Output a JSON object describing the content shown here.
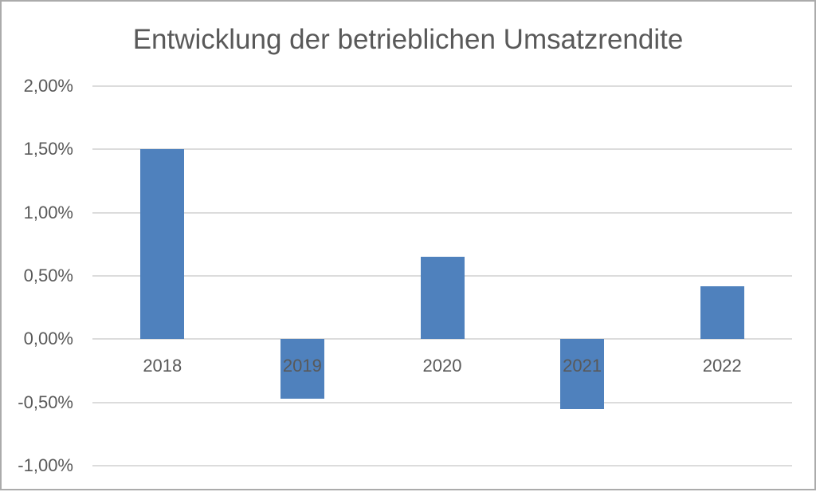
{
  "chart_data": {
    "type": "bar",
    "title": "Entwicklung der betrieblichen Umsatzrendite",
    "categories": [
      "2018",
      "2019",
      "2020",
      "2021",
      "2022"
    ],
    "values": [
      1.5,
      -0.47,
      0.65,
      -0.55,
      0.42
    ],
    "value_unit": "percent",
    "xlabel": "",
    "ylabel": "",
    "ylim": [
      -1.0,
      2.0
    ],
    "yticks": [
      {
        "value": 2.0,
        "label": "2,00%"
      },
      {
        "value": 1.5,
        "label": "1,50%"
      },
      {
        "value": 1.0,
        "label": "1,00%"
      },
      {
        "value": 0.5,
        "label": "0,50%"
      },
      {
        "value": 0.0,
        "label": "0,00%"
      },
      {
        "value": -0.5,
        "label": "-0,50%"
      },
      {
        "value": -1.0,
        "label": "-1,00%"
      }
    ],
    "grid": true,
    "legend": false,
    "colors": {
      "bar": "#4f81bd",
      "gridline": "#dcdcdc",
      "tick_label": "#595959",
      "title": "#595959",
      "frame_border": "#ababab"
    }
  }
}
